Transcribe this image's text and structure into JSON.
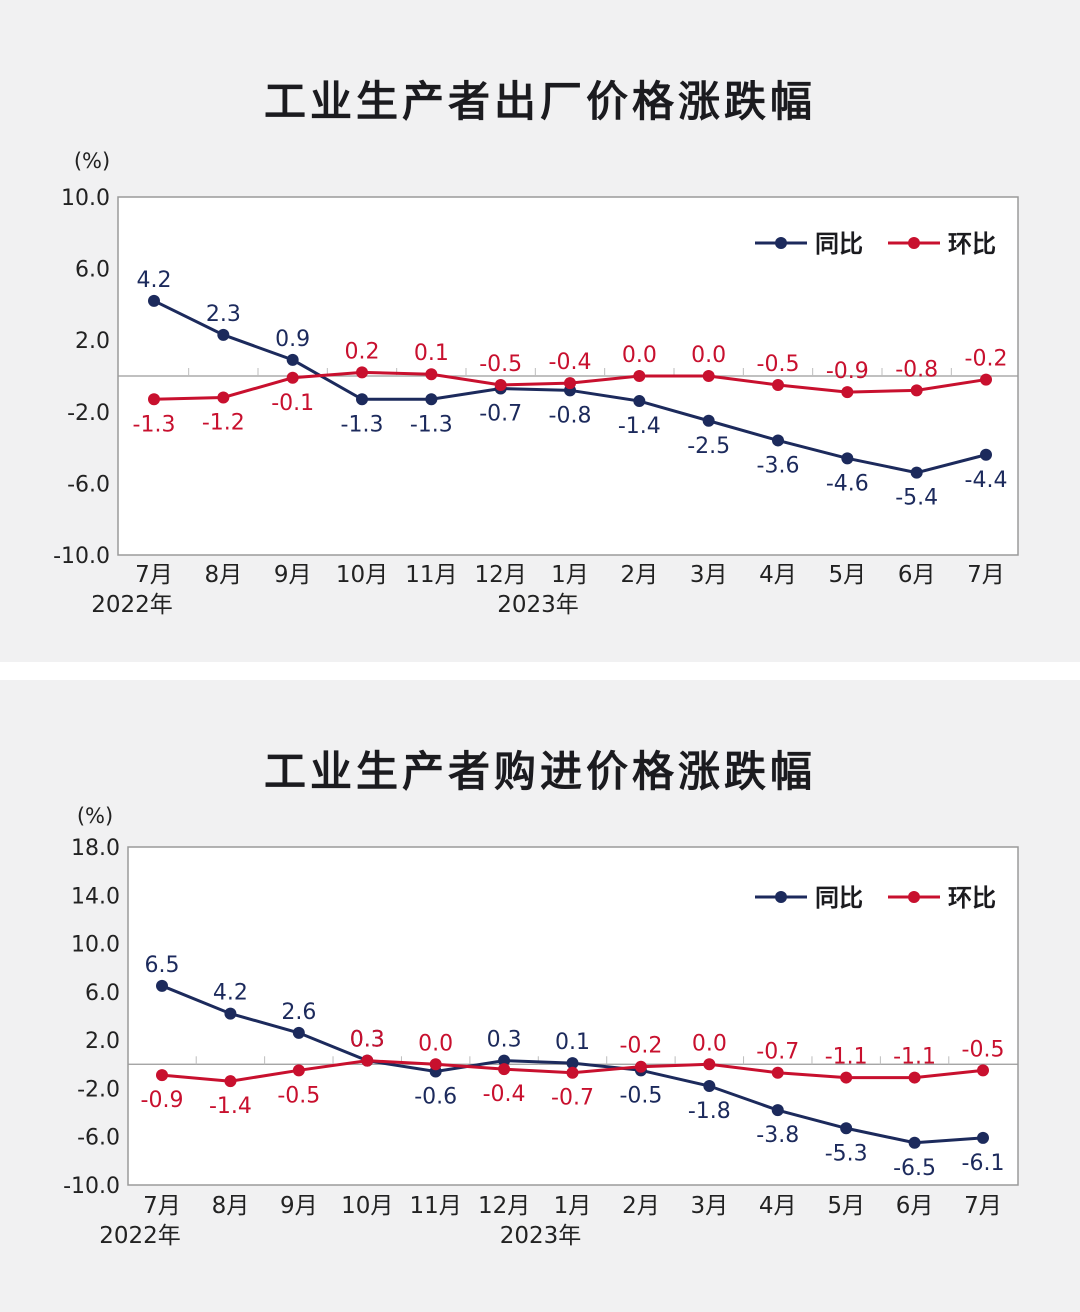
{
  "chart_data": [
    {
      "type": "line",
      "title": "工业生产者出厂价格涨跌幅",
      "unit_label": "(%)",
      "categories": [
        "7月",
        "8月",
        "9月",
        "10月",
        "11月",
        "12月",
        "1月",
        "2月",
        "3月",
        "4月",
        "5月",
        "6月",
        "7月"
      ],
      "year_labels": [
        {
          "label": "2022年",
          "index": 0
        },
        {
          "label": "2023年",
          "index": 6
        }
      ],
      "yticks": [
        "10.0",
        "6.0",
        "2.0",
        "-2.0",
        "-6.0",
        "-10.0"
      ],
      "ylim": [
        -10,
        10
      ],
      "series": [
        {
          "name": "同比",
          "color": "#1c2a5c",
          "values": [
            4.2,
            2.3,
            0.9,
            -1.3,
            -1.3,
            -0.7,
            -0.8,
            -1.4,
            -2.5,
            -3.6,
            -4.6,
            -5.4,
            -4.4
          ],
          "labels": [
            "4.2",
            "2.3",
            "0.9",
            "-1.3",
            "-1.3",
            "-0.7",
            "-0.8",
            "-1.4",
            "-2.5",
            "-3.6",
            "-4.6",
            "-5.4",
            "-4.4"
          ]
        },
        {
          "name": "环比",
          "color": "#c8102e",
          "values": [
            -1.3,
            -1.2,
            -0.1,
            0.2,
            0.1,
            -0.5,
            -0.4,
            0.0,
            0.0,
            -0.5,
            -0.9,
            -0.8,
            -0.2
          ],
          "labels": [
            "-1.3",
            "-1.2",
            "-0.1",
            "0.2",
            "0.1",
            "-0.5",
            "-0.4",
            "0.0",
            "0.0",
            "-0.5",
            "-0.9",
            "-0.8",
            "-0.2"
          ]
        }
      ],
      "legend": "top-right",
      "grid": false
    },
    {
      "type": "line",
      "title": "工业生产者购进价格涨跌幅",
      "unit_label": "(%)",
      "categories": [
        "7月",
        "8月",
        "9月",
        "10月",
        "11月",
        "12月",
        "1月",
        "2月",
        "3月",
        "4月",
        "5月",
        "6月",
        "7月"
      ],
      "year_labels": [
        {
          "label": "2022年",
          "index": 0
        },
        {
          "label": "2023年",
          "index": 6
        }
      ],
      "yticks": [
        "18.0",
        "14.0",
        "10.0",
        "6.0",
        "2.0",
        "-2.0",
        "-6.0",
        "-10.0"
      ],
      "ylim": [
        -10,
        18
      ],
      "series": [
        {
          "name": "同比",
          "color": "#1c2a5c",
          "values": [
            6.5,
            4.2,
            2.6,
            0.3,
            -0.6,
            0.3,
            0.1,
            -0.5,
            -1.8,
            -3.8,
            -5.3,
            -6.5,
            -6.1
          ],
          "labels": [
            "6.5",
            "4.2",
            "2.6",
            "0.3",
            "-0.6",
            "0.3",
            "0.1",
            "-0.5",
            "-1.8",
            "-3.8",
            "-5.3",
            "-6.5",
            "-6.1"
          ]
        },
        {
          "name": "环比",
          "color": "#c8102e",
          "values": [
            -0.9,
            -1.4,
            -0.5,
            0.3,
            0.0,
            -0.4,
            -0.7,
            -0.2,
            0.0,
            -0.7,
            -1.1,
            -1.1,
            -0.5
          ],
          "labels": [
            "-0.9",
            "-1.4",
            "-0.5",
            "0.3",
            "0.0",
            "-0.4",
            "-0.7",
            "-0.2",
            "0.0",
            "-0.7",
            "-1.1",
            "-1.1",
            "-0.5"
          ]
        }
      ],
      "legend": "top-right",
      "grid": false
    }
  ]
}
